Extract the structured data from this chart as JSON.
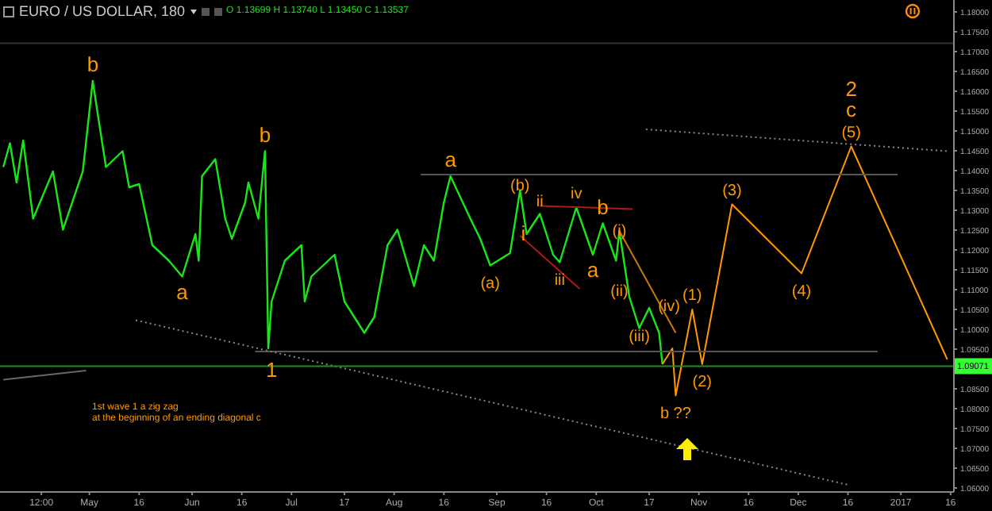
{
  "chart_data": {
    "type": "line",
    "title": "EURO / US DOLLAR, 180",
    "subtitle": "O 1.13699 H 1.13740 L 1.13450 C 1.13537",
    "series": [
      {
        "color": "#19e619",
        "x": [
          "2016-04-05",
          "2016-04-07",
          "2016-04-09",
          "2016-04-11",
          "2016-04-14",
          "2016-04-20",
          "2016-04-23",
          "2016-04-29",
          "2016-05-02",
          "2016-05-04",
          "2016-05-06",
          "2016-05-11",
          "2016-05-13",
          "2016-05-16",
          "2016-05-20",
          "2016-05-25",
          "2016-05-29",
          "2016-06-02",
          "2016-06-03",
          "2016-06-04",
          "2016-06-08",
          "2016-06-11",
          "2016-06-13",
          "2016-06-17",
          "2016-06-18",
          "2016-06-21",
          "2016-06-23",
          "2016-06-24",
          "2016-06-25",
          "2016-06-29",
          "2016-07-04",
          "2016-07-05",
          "2016-07-07",
          "2016-07-14",
          "2016-07-17",
          "2016-07-23",
          "2016-07-26",
          "2016-07-30",
          "2016-08-02",
          "2016-08-07",
          "2016-08-10",
          "2016-08-13",
          "2016-08-16",
          "2016-08-18",
          "2016-08-24",
          "2016-08-27",
          "2016-08-30",
          "2016-09-05",
          "2016-09-08",
          "2016-09-10",
          "2016-09-14",
          "2016-09-18",
          "2016-09-20",
          "2016-09-25",
          "2016-09-30",
          "2016-10-03",
          "2016-10-07",
          "2016-10-08",
          "2016-10-11",
          "2016-10-14",
          "2016-10-17",
          "2016-10-20",
          "2016-10-21"
        ],
        "values": [
          1.1409,
          1.1469,
          1.137,
          1.1476,
          1.1279,
          1.1398,
          1.1251,
          1.1398,
          1.1626,
          1.1516,
          1.1409,
          1.1449,
          1.1358,
          1.1366,
          1.1212,
          1.1173,
          1.1133,
          1.124,
          1.1173,
          1.1386,
          1.1429,
          1.1279,
          1.1228,
          1.1319,
          1.137,
          1.1279,
          1.1449,
          1.0952,
          1.107,
          1.1173,
          1.1212,
          1.107,
          1.1133,
          1.1188,
          1.107,
          1.0991,
          1.1031,
          1.1212,
          1.1251,
          1.1109,
          1.1212,
          1.1173,
          1.1319,
          1.1386,
          1.1279,
          1.1228,
          1.1161,
          1.1192,
          1.135,
          1.124,
          1.1291,
          1.1188,
          1.1169,
          1.1307,
          1.1188,
          1.1267,
          1.1173,
          1.1248,
          1.1082,
          1.1003,
          1.1054,
          1.0991,
          1.0912
        ]
      },
      {
        "color": "#ff9800",
        "x": [
          "2016-10-21",
          "2016-10-24",
          "2016-10-25",
          "2016-10-30",
          "2016-11-02",
          "2016-11-11",
          "2016-12-02",
          "2016-12-17",
          "2017-01-15"
        ],
        "values": [
          1.0912,
          1.0952,
          1.0833,
          1.105,
          1.0912,
          1.1315,
          1.1141,
          1.1461,
          1.0924
        ]
      },
      {
        "color": "#c8780a",
        "x": [
          "2016-10-08",
          "2016-10-25"
        ],
        "values": [
          1.1248,
          1.0991
        ]
      },
      {
        "color": "#b01818",
        "x": [
          "2016-09-14",
          "2016-10-12"
        ],
        "values": [
          1.1311,
          1.1303
        ]
      },
      {
        "color": "#b01818",
        "x": [
          "2016-09-08",
          "2016-09-26"
        ],
        "values": [
          1.1236,
          1.1102
        ]
      },
      {
        "color": "#555555",
        "x": [
          "2016-06-20",
          "2016-12-25"
        ],
        "values": [
          1.0944,
          1.0944
        ]
      },
      {
        "color": "#555555",
        "x": [
          "2016-08-09",
          "2016-12-31"
        ],
        "values": [
          1.139,
          1.139
        ]
      },
      {
        "color": "#666666",
        "x": [
          "2016-04-05",
          "2016-04-30"
        ],
        "values": [
          1.0873,
          1.0896
        ]
      },
      {
        "color": "#888888",
        "line_style": "dotted",
        "x": [
          "2016-05-15",
          "2016-12-16"
        ],
        "values": [
          1.1023,
          1.0608
        ]
      },
      {
        "color": "#888888",
        "line_style": "dotted",
        "x": [
          "2016-10-16",
          "2017-01-15"
        ],
        "values": [
          1.1504,
          1.1449
        ]
      }
    ],
    "ref_lines": [
      {
        "axis": "y",
        "value": 1.09071,
        "label": "1.09071",
        "color": "#1e8c1e"
      },
      {
        "axis": "y",
        "value": 1.1721,
        "color": "#333333"
      }
    ],
    "annotations": [
      {
        "text": "b",
        "x": "2016-05-02",
        "y": 1.1626
      },
      {
        "text": "a",
        "x": "2016-05-29",
        "y": 1.1133
      },
      {
        "text": "b",
        "x": "2016-06-23",
        "y": 1.1449
      },
      {
        "text": "1",
        "x": "2016-06-25",
        "y": 1.0896
      },
      {
        "text": "a",
        "x": "2016-08-18",
        "y": 1.1386
      },
      {
        "text": "(b)",
        "x": "2016-09-08",
        "y": 1.1366
      },
      {
        "text": "(a)",
        "x": "2016-08-30",
        "y": 1.1161
      },
      {
        "text": "i",
        "x": "2016-09-09",
        "y": 1.124
      },
      {
        "text": "ii",
        "x": "2016-09-14",
        "y": 1.1326
      },
      {
        "text": "iii",
        "x": "2016-09-20",
        "y": 1.1129
      },
      {
        "text": "iv",
        "x": "2016-09-25",
        "y": 1.1307
      },
      {
        "text": "a",
        "x": "2016-09-30",
        "y": 1.1188
      },
      {
        "text": "b",
        "x": "2016-10-03",
        "y": 1.1267
      },
      {
        "text": "(i)",
        "x": "2016-10-08",
        "y": 1.1252
      },
      {
        "text": "(ii)",
        "x": "2016-10-08",
        "y": 1.1101
      },
      {
        "text": "(iii)",
        "x": "2016-10-14",
        "y": 1.0987
      },
      {
        "text": "(iv)",
        "x": "2016-10-23",
        "y": 1.1062
      },
      {
        "text": "(1)",
        "x": "2016-10-30",
        "y": 1.105
      },
      {
        "text": "(2)",
        "x": "2016-11-02",
        "y": 1.0912
      },
      {
        "text": "(3)",
        "x": "2016-11-11",
        "y": 1.1315
      },
      {
        "text": "(4)",
        "x": "2016-12-02",
        "y": 1.1141
      },
      {
        "text": "(5)",
        "x": "2016-12-17",
        "y": 1.1461
      },
      {
        "text": "c",
        "x": "2016-12-17",
        "y": 1.1461
      },
      {
        "text": "2",
        "x": "2016-12-17",
        "y": 1.1461
      },
      {
        "text": "b ??",
        "x": "2016-10-25",
        "y": 1.0833
      },
      "1st wave 1  a zig zag",
      "at the beginning of an ending diagonal c"
    ],
    "xlim": [
      "2016-04-04",
      "2017-01-17"
    ],
    "xticks": [
      {
        "value": "2016-04-16T12:00",
        "label": "12:00"
      },
      {
        "value": "2016-05-01",
        "label": "May"
      },
      {
        "value": "2016-05-16",
        "label": "16"
      },
      {
        "value": "2016-06-01",
        "label": "Jun"
      },
      {
        "value": "2016-06-16",
        "label": "16"
      },
      {
        "value": "2016-07-01",
        "label": "Jul"
      },
      {
        "value": "2016-07-17",
        "label": "17"
      },
      {
        "value": "2016-08-01",
        "label": "Aug"
      },
      {
        "value": "2016-08-16",
        "label": "16"
      },
      {
        "value": "2016-09-01",
        "label": "Sep"
      },
      {
        "value": "2016-09-16",
        "label": "16"
      },
      {
        "value": "2016-10-01",
        "label": "Oct"
      },
      {
        "value": "2016-10-17",
        "label": "17"
      },
      {
        "value": "2016-11-01",
        "label": "Nov"
      },
      {
        "value": "2016-11-16",
        "label": "16"
      },
      {
        "value": "2016-12-01",
        "label": "Dec"
      },
      {
        "value": "2016-12-16",
        "label": "16"
      },
      {
        "value": "2017-01-01",
        "label": "2017"
      },
      {
        "value": "2017-01-16",
        "label": "16"
      }
    ],
    "ylim": [
      1.059,
      1.183
    ],
    "yticks": [
      {
        "value": 1.06,
        "label": "1.06000"
      },
      {
        "value": 1.065,
        "label": "1.06500"
      },
      {
        "value": 1.07,
        "label": "1.07000"
      },
      {
        "value": 1.075,
        "label": "1.07500"
      },
      {
        "value": 1.08,
        "label": "1.08000"
      },
      {
        "value": 1.085,
        "label": "1.08500"
      },
      {
        "value": 1.095,
        "label": "1.09500"
      },
      {
        "value": 1.1,
        "label": "1.10000"
      },
      {
        "value": 1.105,
        "label": "1.10500"
      },
      {
        "value": 1.11,
        "label": "1.11000"
      },
      {
        "value": 1.115,
        "label": "1.11500"
      },
      {
        "value": 1.12,
        "label": "1.12000"
      },
      {
        "value": 1.125,
        "label": "1.12500"
      },
      {
        "value": 1.13,
        "label": "1.13000"
      },
      {
        "value": 1.135,
        "label": "1.13500"
      },
      {
        "value": 1.14,
        "label": "1.14000"
      },
      {
        "value": 1.145,
        "label": "1.14500"
      },
      {
        "value": 1.15,
        "label": "1.15000"
      },
      {
        "value": 1.155,
        "label": "1.15500"
      },
      {
        "value": 1.16,
        "label": "1.16000"
      },
      {
        "value": 1.165,
        "label": "1.16500"
      },
      {
        "value": 1.17,
        "label": "1.17000"
      },
      {
        "value": 1.175,
        "label": "1.17500"
      },
      {
        "value": 1.18,
        "label": "1.18000"
      }
    ],
    "grid": false,
    "legend": false,
    "marker": "none"
  }
}
